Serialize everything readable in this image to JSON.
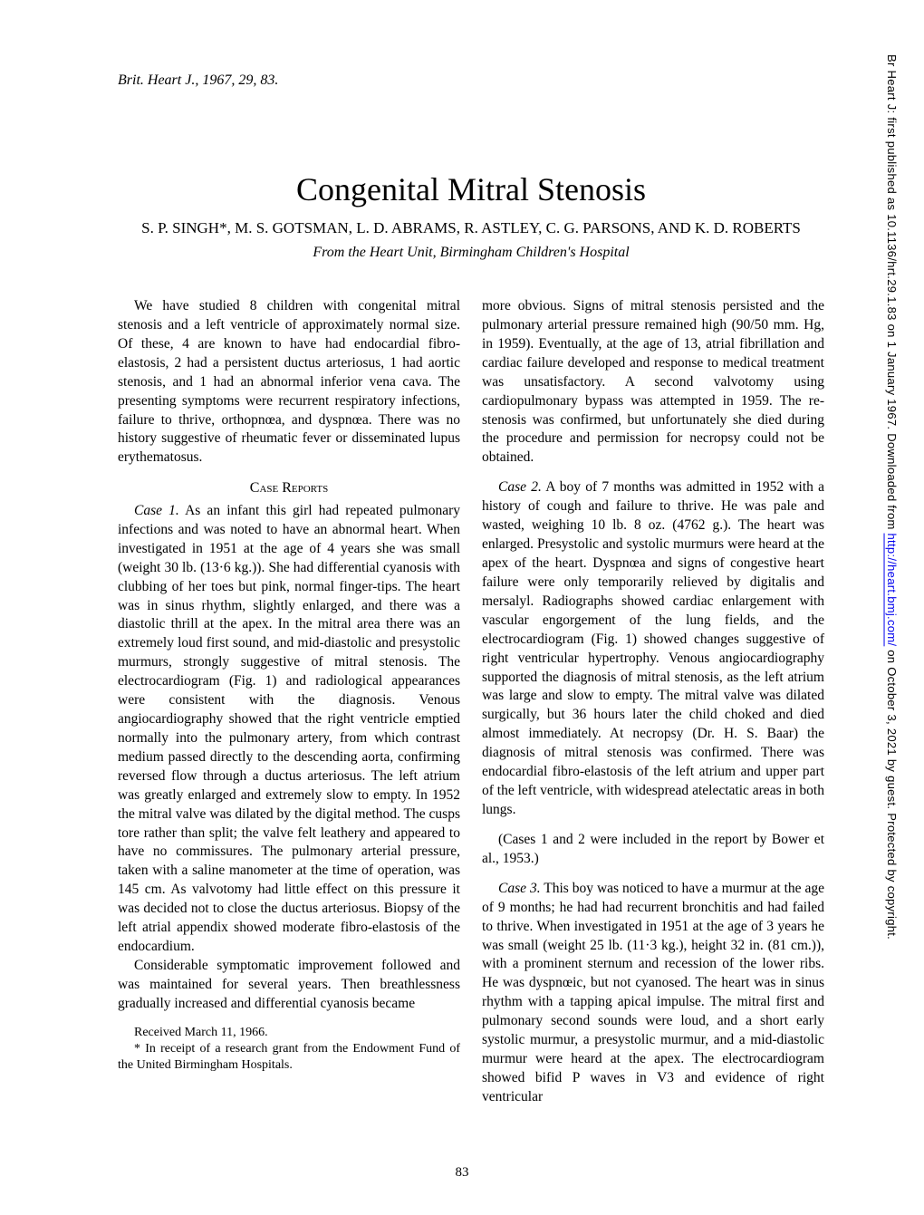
{
  "journal_ref": "Brit. Heart J., 1967, 29, 83.",
  "title": "Congenital Mitral Stenosis",
  "authors": "S. P. SINGH*, M. S. GOTSMAN, L. D. ABRAMS, R. ASTLEY, C. G. PARSONS, AND K. D. ROBERTS",
  "affiliation": "From the Heart Unit, Birmingham Children's Hospital",
  "intro": "We have studied 8 children with congenital mitral stenosis and a left ventricle of approximately normal size. Of these, 4 are known to have had endocardial fibro-elastosis, 2 had a persistent ductus arteriosus, 1 had aortic stenosis, and 1 had an abnormal inferior vena cava. The presenting symptoms were recurrent respiratory infections, failure to thrive, orthopnœa, and dyspnœa. There was no history suggestive of rheumatic fever or disseminated lupus erythematosus.",
  "section_heading": "Case Reports",
  "case1_label": "Case 1.",
  "case1_text": " As an infant this girl had repeated pulmonary infections and was noted to have an abnormal heart. When investigated in 1951 at the age of 4 years she was small (weight 30 lb. (13·6 kg.)). She had differential cyanosis with clubbing of her toes but pink, normal finger-tips. The heart was in sinus rhythm, slightly enlarged, and there was a diastolic thrill at the apex. In the mitral area there was an extremely loud first sound, and mid-diastolic and presystolic murmurs, strongly suggestive of mitral stenosis. The electrocardiogram (Fig. 1) and radiological appearances were consistent with the diagnosis. Venous angiocardiography showed that the right ventricle emptied normally into the pulmonary artery, from which contrast medium passed directly to the descending aorta, confirming reversed flow through a ductus arteriosus. The left atrium was greatly enlarged and extremely slow to empty. In 1952 the mitral valve was dilated by the digital method. The cusps tore rather than split; the valve felt leathery and appeared to have no commissures. The pulmonary arterial pressure, taken with a saline manometer at the time of operation, was 145 cm. As valvotomy had little effect on this pressure it was decided not to close the ductus arteriosus. Biopsy of the left atrial appendix showed moderate fibro-elastosis of the endocardium.",
  "case1_para2": "Considerable symptomatic improvement followed and was maintained for several years. Then breathlessness gradually increased and differential cyanosis became",
  "footnote1": "Received March 11, 1966.",
  "footnote2": "* In receipt of a research grant from the Endowment Fund of the United Birmingham Hospitals.",
  "col2_para1": "more obvious. Signs of mitral stenosis persisted and the pulmonary arterial pressure remained high (90/50 mm. Hg, in 1959). Eventually, at the age of 13, atrial fibrillation and cardiac failure developed and response to medical treatment was unsatisfactory. A second valvotomy using cardiopulmonary bypass was attempted in 1959. The re-stenosis was confirmed, but unfortunately she died during the procedure and permission for necropsy could not be obtained.",
  "case2_label": "Case 2.",
  "case2_text": " A boy of 7 months was admitted in 1952 with a history of cough and failure to thrive. He was pale and wasted, weighing 10 lb. 8 oz. (4762 g.). The heart was enlarged. Presystolic and systolic murmurs were heard at the apex of the heart. Dyspnœa and signs of congestive heart failure were only temporarily relieved by digitalis and mersalyl. Radiographs showed cardiac enlargement with vascular engorgement of the lung fields, and the electrocardiogram (Fig. 1) showed changes suggestive of right ventricular hypertrophy. Venous angiocardiography supported the diagnosis of mitral stenosis, as the left atrium was large and slow to empty. The mitral valve was dilated surgically, but 36 hours later the child choked and died almost immediately. At necropsy (Dr. H. S. Baar) the diagnosis of mitral stenosis was confirmed. There was endocardial fibro-elastosis of the left atrium and upper part of the left ventricle, with widespread atelectatic areas in both lungs.",
  "cases_note": "(Cases 1 and 2 were included in the report by Bower et al., 1953.)",
  "case3_label": "Case 3.",
  "case3_text": " This boy was noticed to have a murmur at the age of 9 months; he had had recurrent bronchitis and had failed to thrive. When investigated in 1951 at the age of 3 years he was small (weight 25 lb. (11·3 kg.), height 32 in. (81 cm.)), with a prominent sternum and recession of the lower ribs. He was dyspnœic, but not cyanosed. The heart was in sinus rhythm with a tapping apical impulse. The mitral first and pulmonary second sounds were loud, and a short early systolic murmur, a presystolic murmur, and a mid-diastolic murmur were heard at the apex. The electrocardiogram showed bifid P waves in V3 and evidence of right ventricular",
  "page_number": "83",
  "sidebar_prefix": "Br Heart J: first published as 10.1136/hrt.29.1.83 on 1 January 1967. Downloaded from ",
  "sidebar_link": "http://heart.bmj.com/",
  "sidebar_suffix": " on October 3, 2021 by guest. Protected by copyright."
}
